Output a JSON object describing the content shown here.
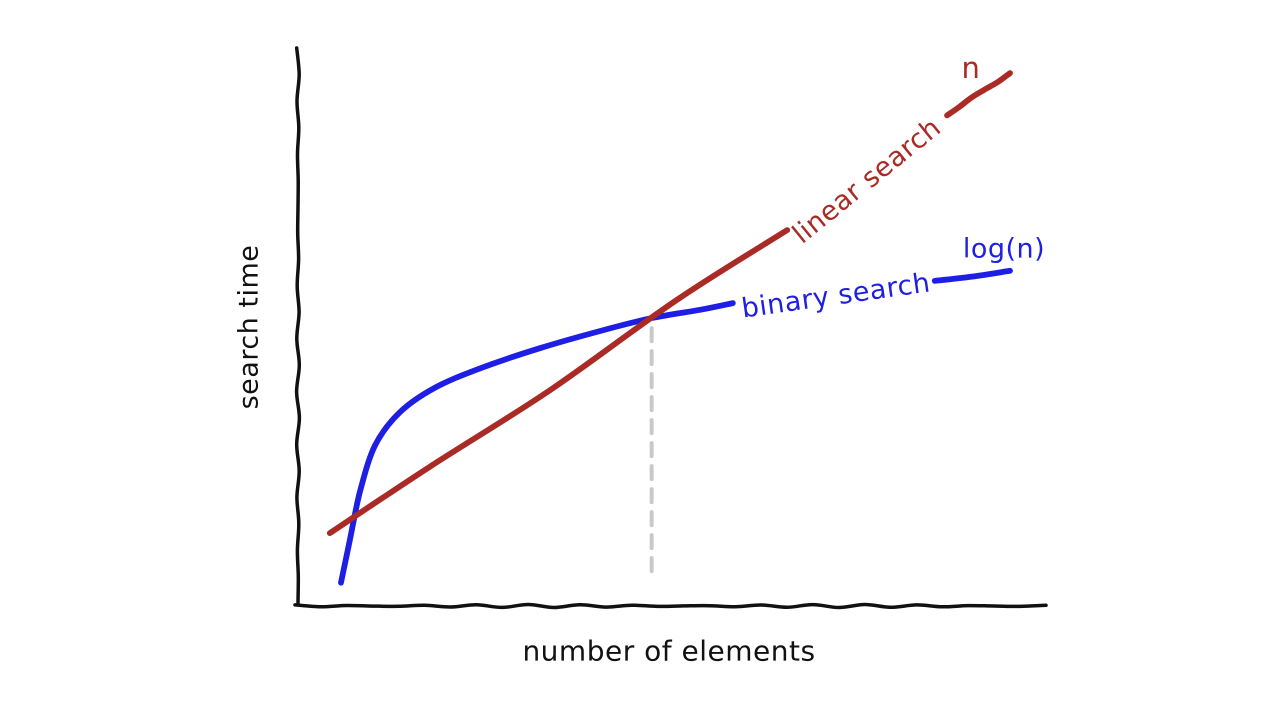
{
  "page": {
    "background": "#ffffff"
  },
  "chart_data": {
    "type": "line",
    "style": "hand-drawn",
    "title": "",
    "xlabel": "number of elements",
    "ylabel": "search time",
    "axis_color": "#111111",
    "grid": false,
    "legend_position": "inline-labels",
    "x_range": [
      0,
      100
    ],
    "y_range": [
      0,
      100
    ],
    "series": [
      {
        "name": "linear search",
        "end_label": "n",
        "color": "#AA2B26",
        "segments": [
          [
            [
              4.0,
              12.9
            ],
            [
              17.4,
              24.8
            ],
            [
              33.6,
              38.6
            ],
            [
              50.6,
              54.8
            ],
            [
              65.4,
              67.3
            ]
          ],
          [
            [
              86.8,
              88.0
            ],
            [
              95.3,
              95.5
            ]
          ]
        ]
      },
      {
        "name": "binary search",
        "end_label": "log(n)",
        "color": "#1E1EE4",
        "segments": [
          [
            [
              5.5,
              4.0
            ],
            [
              6.7,
              11.7
            ],
            [
              8.1,
              20.6
            ],
            [
              10.1,
              28.7
            ],
            [
              13.4,
              34.6
            ],
            [
              18.1,
              39.0
            ],
            [
              24.2,
              42.5
            ],
            [
              32.2,
              46.1
            ],
            [
              40.3,
              49.2
            ],
            [
              47.2,
              51.5
            ],
            [
              53.7,
              53.0
            ],
            [
              58.1,
              54.2
            ]
          ],
          [
            [
              85.2,
              58.2
            ],
            [
              89.9,
              58.9
            ],
            [
              95.3,
              60.0
            ]
          ]
        ]
      }
    ],
    "annotations": [
      {
        "type": "vline",
        "line_style": "dashed",
        "color": "#C9C9C9",
        "x": 47.2,
        "y_from": 4.8,
        "y_to": 49.7
      }
    ]
  }
}
